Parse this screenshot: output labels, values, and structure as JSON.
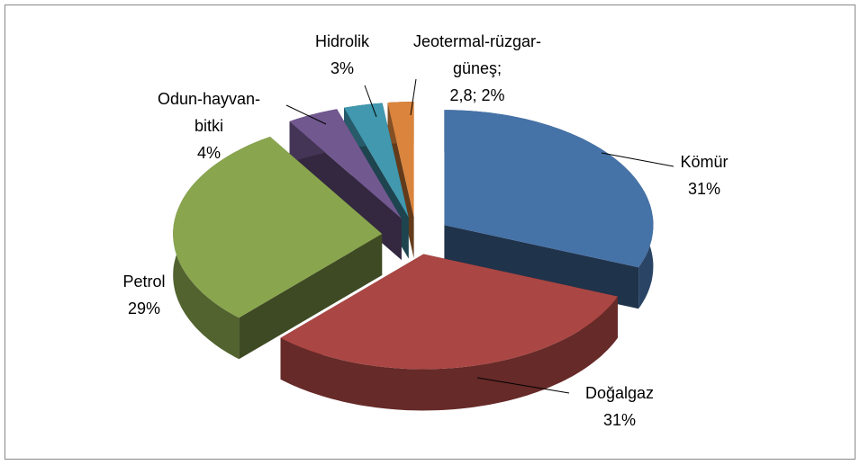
{
  "chart_data": {
    "type": "pie3d",
    "categories": [
      "Kömür",
      "Doğalgaz",
      "Petrol",
      "Odun-hayvan-bitki",
      "Hidrolik",
      "Jeotermal-rüzgar-güneş;"
    ],
    "values": [
      31,
      31,
      29,
      4,
      3,
      2
    ],
    "value_labels": [
      "31%",
      "31%",
      "29%",
      "4%",
      "3%",
      "2,8; 2%"
    ],
    "colors": [
      "#4572a7",
      "#aa4643",
      "#89a54e",
      "#71588f",
      "#4198af",
      "#db843d"
    ],
    "exploded": true
  }
}
